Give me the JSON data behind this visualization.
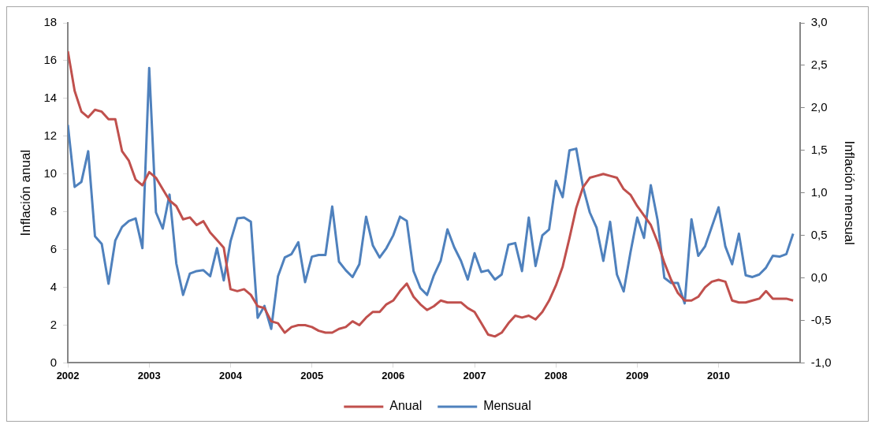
{
  "chart_data": {
    "type": "line",
    "ylabel": "Inflación anual",
    "y2label": "Inflación mensual",
    "x": [
      "2002-01",
      "2002-02",
      "2002-03",
      "2002-04",
      "2002-05",
      "2002-06",
      "2002-07",
      "2002-08",
      "2002-09",
      "2002-10",
      "2002-11",
      "2002-12",
      "2003-01",
      "2003-02",
      "2003-03",
      "2003-04",
      "2003-05",
      "2003-06",
      "2003-07",
      "2003-08",
      "2003-09",
      "2003-10",
      "2003-11",
      "2003-12",
      "2004-01",
      "2004-02",
      "2004-03",
      "2004-04",
      "2004-05",
      "2004-06",
      "2004-07",
      "2004-08",
      "2004-09",
      "2004-10",
      "2004-11",
      "2004-12",
      "2005-01",
      "2005-02",
      "2005-03",
      "2005-04",
      "2005-05",
      "2005-06",
      "2005-07",
      "2005-08",
      "2005-09",
      "2005-10",
      "2005-11",
      "2005-12",
      "2006-01",
      "2006-02",
      "2006-03",
      "2006-04",
      "2006-05",
      "2006-06",
      "2006-07",
      "2006-08",
      "2006-09",
      "2006-10",
      "2006-11",
      "2006-12",
      "2007-01",
      "2007-02",
      "2007-03",
      "2007-04",
      "2007-05",
      "2007-06",
      "2007-07",
      "2007-08",
      "2007-09",
      "2007-10",
      "2007-11",
      "2007-12",
      "2008-01",
      "2008-02",
      "2008-03",
      "2008-04",
      "2008-05",
      "2008-06",
      "2008-07",
      "2008-08",
      "2008-09",
      "2008-10",
      "2008-11",
      "2008-12",
      "2009-01",
      "2009-02",
      "2009-03",
      "2009-04",
      "2009-05",
      "2009-06",
      "2009-07",
      "2009-08",
      "2009-09",
      "2009-10",
      "2009-11",
      "2009-12",
      "2010-01",
      "2010-02",
      "2010-03",
      "2010-04",
      "2010-05",
      "2010-06",
      "2010-07",
      "2010-08",
      "2010-09",
      "2010-10",
      "2010-11",
      "2010-12"
    ],
    "series": [
      {
        "name": "Anual",
        "color": "#c0504d",
        "values": [
          16.5,
          14.4,
          13.3,
          13.0,
          13.4,
          13.3,
          12.9,
          12.9,
          11.2,
          10.7,
          9.7,
          9.4,
          10.1,
          9.8,
          9.2,
          8.6,
          8.3,
          7.6,
          7.7,
          7.3,
          7.5,
          6.9,
          6.5,
          6.1,
          3.9,
          3.8,
          3.9,
          3.6,
          3.0,
          2.9,
          2.2,
          2.1,
          1.6,
          1.9,
          2.0,
          2.0,
          1.9,
          1.7,
          1.6,
          1.6,
          1.8,
          1.9,
          2.2,
          2.0,
          2.4,
          2.7,
          2.7,
          3.1,
          3.3,
          3.8,
          4.2,
          3.5,
          3.1,
          2.8,
          3.0,
          3.3,
          3.2,
          3.2,
          3.2,
          2.9,
          2.7,
          2.1,
          1.5,
          1.4,
          1.6,
          2.1,
          2.5,
          2.4,
          2.5,
          2.3,
          2.7,
          3.3,
          4.1,
          5.1,
          6.6,
          8.2,
          9.3,
          9.8,
          9.9,
          10.0,
          9.9,
          9.8,
          9.2,
          8.9,
          8.3,
          7.8,
          7.3,
          6.4,
          5.3,
          4.4,
          3.7,
          3.3,
          3.3,
          3.5,
          4.0,
          4.3,
          4.4,
          4.3,
          3.3,
          3.2,
          3.2,
          3.3,
          3.4,
          3.8,
          3.4,
          3.4,
          3.4,
          3.3
        ]
      },
      {
        "name": "Mensual",
        "color": "#4f81bd",
        "axis": "y2",
        "values": [
          1.8,
          1.07,
          1.13,
          1.49,
          0.49,
          0.4,
          -0.07,
          0.44,
          0.6,
          0.67,
          0.7,
          0.35,
          2.47,
          0.77,
          0.58,
          0.98,
          0.17,
          -0.2,
          0.05,
          0.08,
          0.09,
          0.02,
          0.35,
          -0.03,
          0.43,
          0.7,
          0.71,
          0.66,
          -0.47,
          -0.33,
          -0.6,
          0.02,
          0.24,
          0.28,
          0.42,
          -0.05,
          0.25,
          0.27,
          0.27,
          0.84,
          0.19,
          0.09,
          0.01,
          0.16,
          0.72,
          0.38,
          0.24,
          0.35,
          0.5,
          0.72,
          0.67,
          0.08,
          -0.12,
          -0.2,
          0.03,
          0.2,
          0.57,
          0.36,
          0.2,
          -0.02,
          0.29,
          0.07,
          0.09,
          -0.02,
          0.04,
          0.39,
          0.41,
          0.08,
          0.71,
          0.14,
          0.5,
          0.57,
          1.14,
          0.95,
          1.5,
          1.52,
          1.07,
          0.77,
          0.59,
          0.2,
          0.66,
          0.04,
          -0.16,
          0.3,
          0.71,
          0.47,
          1.09,
          0.68,
          0.0,
          -0.06,
          -0.06,
          -0.3,
          0.69,
          0.26,
          0.37,
          0.6,
          0.83,
          0.37,
          0.16,
          0.52,
          0.03,
          0.01,
          0.04,
          0.12,
          0.26,
          0.25,
          0.28,
          0.52
        ]
      }
    ],
    "xlim": [
      "2002-01",
      "2011-01"
    ],
    "xticks": [
      {
        "value": "2002",
        "label": "2002"
      },
      {
        "value": "2003",
        "label": "2003"
      },
      {
        "value": "2004",
        "label": "2004"
      },
      {
        "value": "2005",
        "label": "2005"
      },
      {
        "value": "2006",
        "label": "2006"
      },
      {
        "value": "2007",
        "label": "2007"
      },
      {
        "value": "2008",
        "label": "2008"
      },
      {
        "value": "2009",
        "label": "2009"
      },
      {
        "value": "2010",
        "label": "2010"
      }
    ],
    "ylim": [
      0,
      18
    ],
    "yticks": [
      0,
      2,
      4,
      6,
      8,
      10,
      12,
      14,
      16,
      18
    ],
    "y2lim": [
      -1,
      3
    ],
    "y2ticks": [
      {
        "value": -1,
        "label": "-1,0"
      },
      {
        "value": -0.5,
        "label": "-0,5"
      },
      {
        "value": 0,
        "label": "0,0"
      },
      {
        "value": 0.5,
        "label": "0,5"
      },
      {
        "value": 1,
        "label": "1,0"
      },
      {
        "value": 1.5,
        "label": "1,5"
      },
      {
        "value": 2,
        "label": "2,0"
      },
      {
        "value": 2.5,
        "label": "2,5"
      },
      {
        "value": 3,
        "label": "3,0"
      }
    ],
    "grid": false,
    "legend": "bottom",
    "marker": "none",
    "line_style": "solid"
  }
}
